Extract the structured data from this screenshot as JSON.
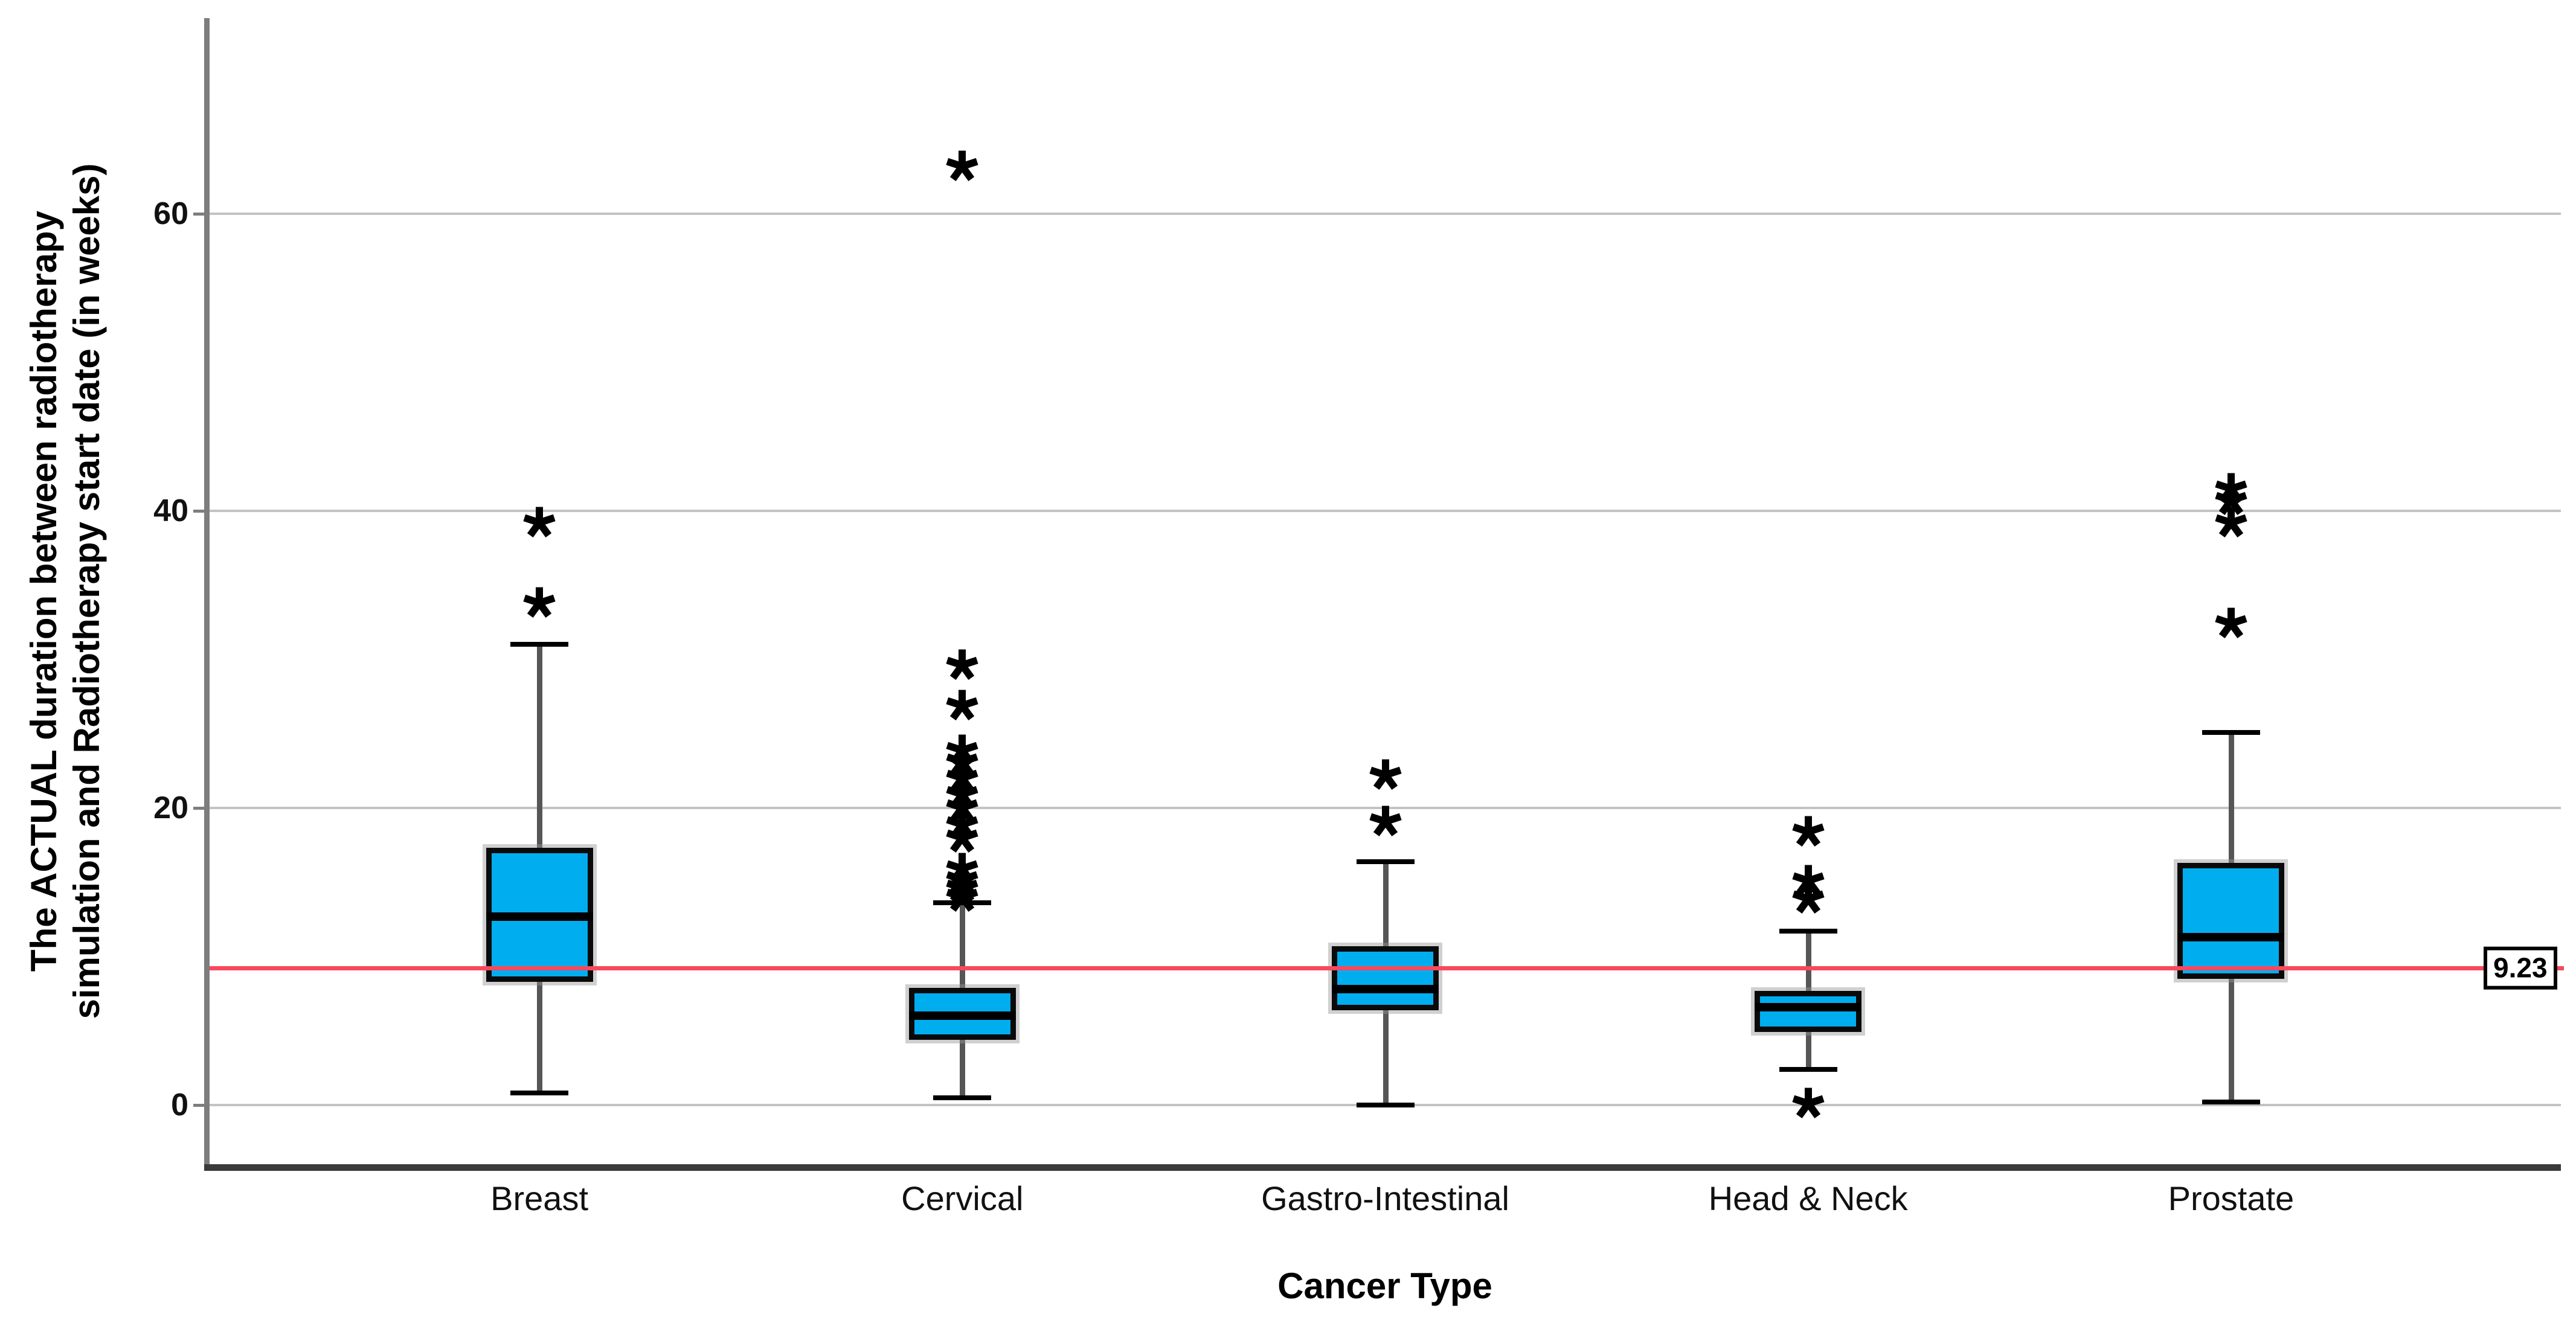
{
  "figure": {
    "background": "#ffffff",
    "y_axis": {
      "title_line1": "The ACTUAL duration between radiotherapy",
      "title_line2": "simulation and Radiotherapy start date (in weeks)",
      "tick_labels": [
        "0",
        "20",
        "40",
        "60"
      ],
      "ticks": [
        0,
        20,
        40,
        60
      ]
    },
    "x_axis": {
      "title": "Cancer Type"
    },
    "reference_line": {
      "value": 9.23,
      "label": "9.23",
      "color": "#F8485E"
    },
    "colors": {
      "box_fill": "#00AEF0",
      "box_border": "#0a0a0a",
      "median": "#000000",
      "whisker_stem": "#565656",
      "whisker_cap": "#000000",
      "gridline": "#c3c3c3",
      "y_spine": "#7d7d7d",
      "x_spine": "#3a3a3a",
      "outlier": "#000000"
    },
    "outlier_marker": "asterisk-star-icon"
  },
  "chart_data": {
    "type": "box",
    "title": "",
    "xlabel": "Cancer Type",
    "ylabel": "The ACTUAL duration between radiotherapy simulation and Radiotherapy start date (in weeks)",
    "categories": [
      "Breast",
      "Cervical",
      "Gastro-Intestinal",
      "Head & Neck",
      "Prostate"
    ],
    "ylim": [
      -4,
      73.3
    ],
    "yticks": [
      0,
      20,
      40,
      60
    ],
    "grid": true,
    "legend_position": "none",
    "reference_line": 9.23,
    "series": [
      {
        "name": "Breast",
        "min": 0.8,
        "q1": 8.3,
        "median": 12.7,
        "q3": 17.3,
        "max": 31.0,
        "outliers": [
          33.7,
          39.1
        ]
      },
      {
        "name": "Cervical",
        "min": 0.5,
        "q1": 4.4,
        "median": 6.0,
        "q3": 7.9,
        "max": 13.6,
        "outliers": [
          13.9,
          14.5,
          15.1,
          15.8,
          17.9,
          18.8,
          19.9,
          20.8,
          21.9,
          23.0,
          23.8,
          26.8,
          29.5,
          63.1
        ]
      },
      {
        "name": "Gastro-Intestinal",
        "min": 0.0,
        "q1": 6.4,
        "median": 7.8,
        "q3": 10.7,
        "max": 16.4,
        "outliers": [
          19.0,
          22.1
        ]
      },
      {
        "name": "Head & Neck",
        "min": 2.4,
        "q1": 4.9,
        "median": 6.6,
        "q3": 7.7,
        "max": 11.7,
        "outliers": [
          0.0,
          13.8,
          15.0,
          18.3
        ]
      },
      {
        "name": "Prostate",
        "min": 0.2,
        "q1": 8.5,
        "median": 11.3,
        "q3": 16.3,
        "max": 25.1,
        "outliers": [
          32.3,
          39.1,
          40.6,
          41.4
        ]
      }
    ]
  }
}
